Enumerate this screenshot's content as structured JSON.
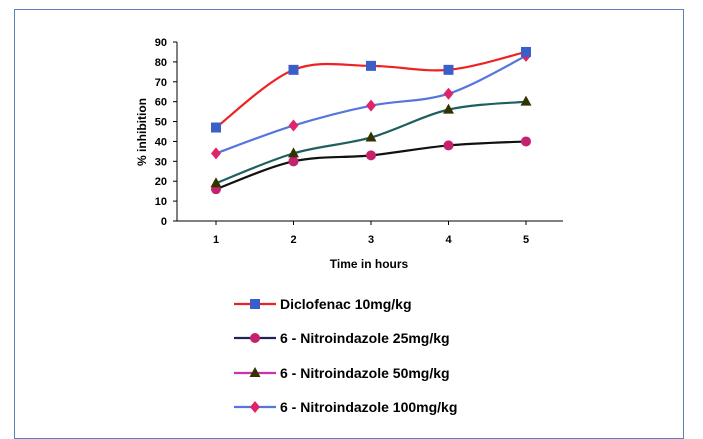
{
  "chart_data": {
    "type": "line",
    "title": "",
    "xlabel": "Time in hours",
    "ylabel": "% inhibition",
    "categories": [
      "1",
      "2",
      "3",
      "4",
      "5"
    ],
    "ylim": [
      0,
      90
    ],
    "yticks": [
      "0",
      "10",
      "20",
      "30",
      "40",
      "50",
      "60",
      "70",
      "80",
      "90"
    ],
    "grid": false,
    "legend_position": "bottom",
    "series": [
      {
        "name": "Diclofenac 10mg/kg",
        "values": [
          47,
          76,
          78,
          76,
          85
        ],
        "color": "#ee2222",
        "marker_color": "#3b5fc9",
        "marker": "square"
      },
      {
        "name": "6 - Nitroindazole 25mg/kg",
        "values": [
          16,
          30,
          33,
          38,
          40
        ],
        "color": "#111111",
        "marker_color": "#c4226e",
        "marker": "circle"
      },
      {
        "name": "6 - Nitroindazole 50mg/kg",
        "values": [
          19,
          34,
          42,
          56,
          60
        ],
        "color": "#1f5f5f",
        "marker_color": "#333300",
        "marker": "triangle"
      },
      {
        "name": "6 - Nitroindazole 100mg/kg",
        "values": [
          34,
          48,
          58,
          64,
          83
        ],
        "color": "#5577dd",
        "marker_color": "#e0246a",
        "marker": "diamond"
      }
    ],
    "legend_line_colors": [
      "#ee2222",
      "#222255",
      "#cc33aa",
      "#5577dd"
    ]
  }
}
